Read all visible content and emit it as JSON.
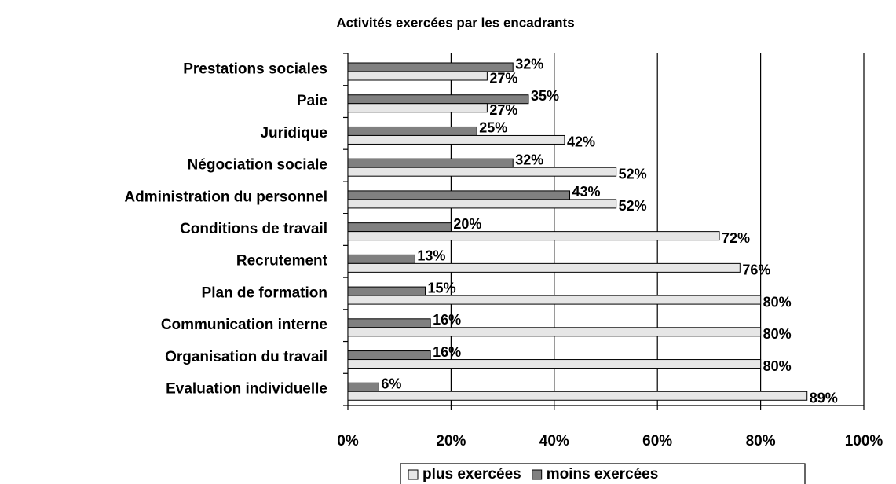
{
  "chart_data": {
    "type": "bar",
    "orientation": "horizontal",
    "title": "Activités exercées par les encadrants",
    "categories": [
      "Prestations  sociales",
      "Paie",
      "Juridique",
      "Négociation sociale",
      "Administration du personnel",
      "Conditions de travail",
      "Recrutement",
      "Plan de formation",
      "Communication interne",
      "Organisation du travail",
      "Evaluation individuelle"
    ],
    "series": [
      {
        "name": "plus exercées",
        "color": "#e6e6e6",
        "values": [
          27,
          27,
          42,
          52,
          52,
          72,
          76,
          80,
          80,
          80,
          89
        ],
        "value_labels": [
          "27%",
          "27%",
          "42%",
          "52%",
          "52%",
          "72%",
          "76%",
          "80%",
          "80%",
          "80%",
          "89%"
        ]
      },
      {
        "name": "moins exercées",
        "color": "#808080",
        "values": [
          32,
          35,
          25,
          32,
          43,
          20,
          13,
          15,
          16,
          16,
          6
        ],
        "value_labels": [
          "32%",
          "35%",
          "25%",
          "32%",
          "43%",
          "20%",
          "13%",
          "15%",
          "16%",
          "16%",
          "6%"
        ]
      }
    ],
    "xlim": [
      0,
      100
    ],
    "xticks": [
      {
        "value": 0,
        "label": "0%"
      },
      {
        "value": 20,
        "label": "20%"
      },
      {
        "value": 40,
        "label": "40%"
      },
      {
        "value": 60,
        "label": "60%"
      },
      {
        "value": 80,
        "label": "80%"
      },
      {
        "value": 100,
        "label": "100%"
      }
    ],
    "grid": true,
    "legend": "bottom"
  }
}
